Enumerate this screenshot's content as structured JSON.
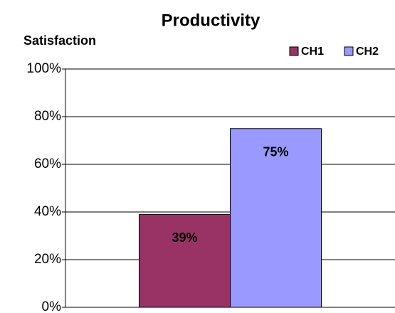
{
  "chart_data": {
    "type": "bar",
    "title": "Productivity",
    "y_label": "Satisfaction",
    "categories": [
      null
    ],
    "series": [
      {
        "name": "CH1",
        "color": "#993366",
        "values": [
          39
        ],
        "value_labels": [
          "39%"
        ]
      },
      {
        "name": "CH2",
        "color": "#9999ff",
        "values": [
          75
        ],
        "value_labels": [
          "75%"
        ]
      }
    ],
    "ylim": [
      0,
      100
    ],
    "yticks": [
      {
        "value": 0,
        "label": "0%"
      },
      {
        "value": 20,
        "label": "20%"
      },
      {
        "value": 40,
        "label": "40%"
      },
      {
        "value": 60,
        "label": "60%"
      },
      {
        "value": 80,
        "label": "80%"
      },
      {
        "value": 100,
        "label": "100%"
      }
    ],
    "grid": true,
    "legend": "top-right"
  }
}
